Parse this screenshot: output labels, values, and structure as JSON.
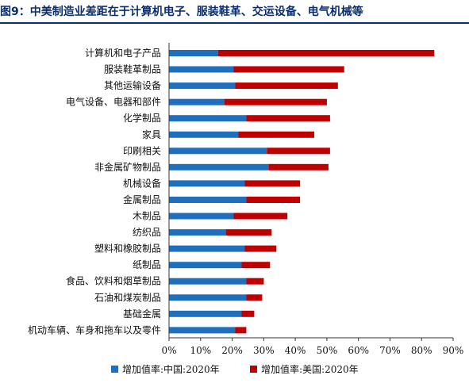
{
  "title": "图9：中美制造业差距在于计算机电子、服装鞋革、交运设备、电气机械等",
  "chart_data": {
    "type": "bar",
    "orientation": "horizontal",
    "stacked": true,
    "categories": [
      "计算机和电子产品",
      "服装鞋革制品",
      "其他运输设备",
      "电气设备、电器和部件",
      "化学制品",
      "家具",
      "印刷相关",
      "非金属矿物制品",
      "机械设备",
      "金属制品",
      "木制品",
      "纺织品",
      "塑料和橡胶制品",
      "纸制品",
      "食品、饮料和烟草制品",
      "石油和煤炭制品",
      "基础金属",
      "机动车辆、车身和拖车以及零件"
    ],
    "series": [
      {
        "name": "增加值率:中国:2020年",
        "color": "#1f6fbf",
        "values": [
          15.5,
          20.5,
          21.0,
          17.5,
          24.5,
          22.0,
          31.0,
          31.5,
          24.0,
          24.5,
          20.5,
          18.0,
          24.0,
          23.0,
          24.5,
          24.5,
          23.0,
          21.0
        ]
      },
      {
        "name": "增加值率:美国:2020年",
        "color": "#c00000",
        "values": [
          68.5,
          35.0,
          32.5,
          32.5,
          26.5,
          24.0,
          20.0,
          19.0,
          17.5,
          17.0,
          17.0,
          14.5,
          10.0,
          9.0,
          5.5,
          5.0,
          4.0,
          3.5
        ]
      }
    ],
    "xlim": [
      0,
      90
    ],
    "xticks": [
      "0%",
      "10%",
      "20%",
      "30%",
      "40%",
      "50%",
      "60%",
      "70%",
      "80%",
      "90%"
    ],
    "grid": false,
    "legend_position": "bottom"
  }
}
